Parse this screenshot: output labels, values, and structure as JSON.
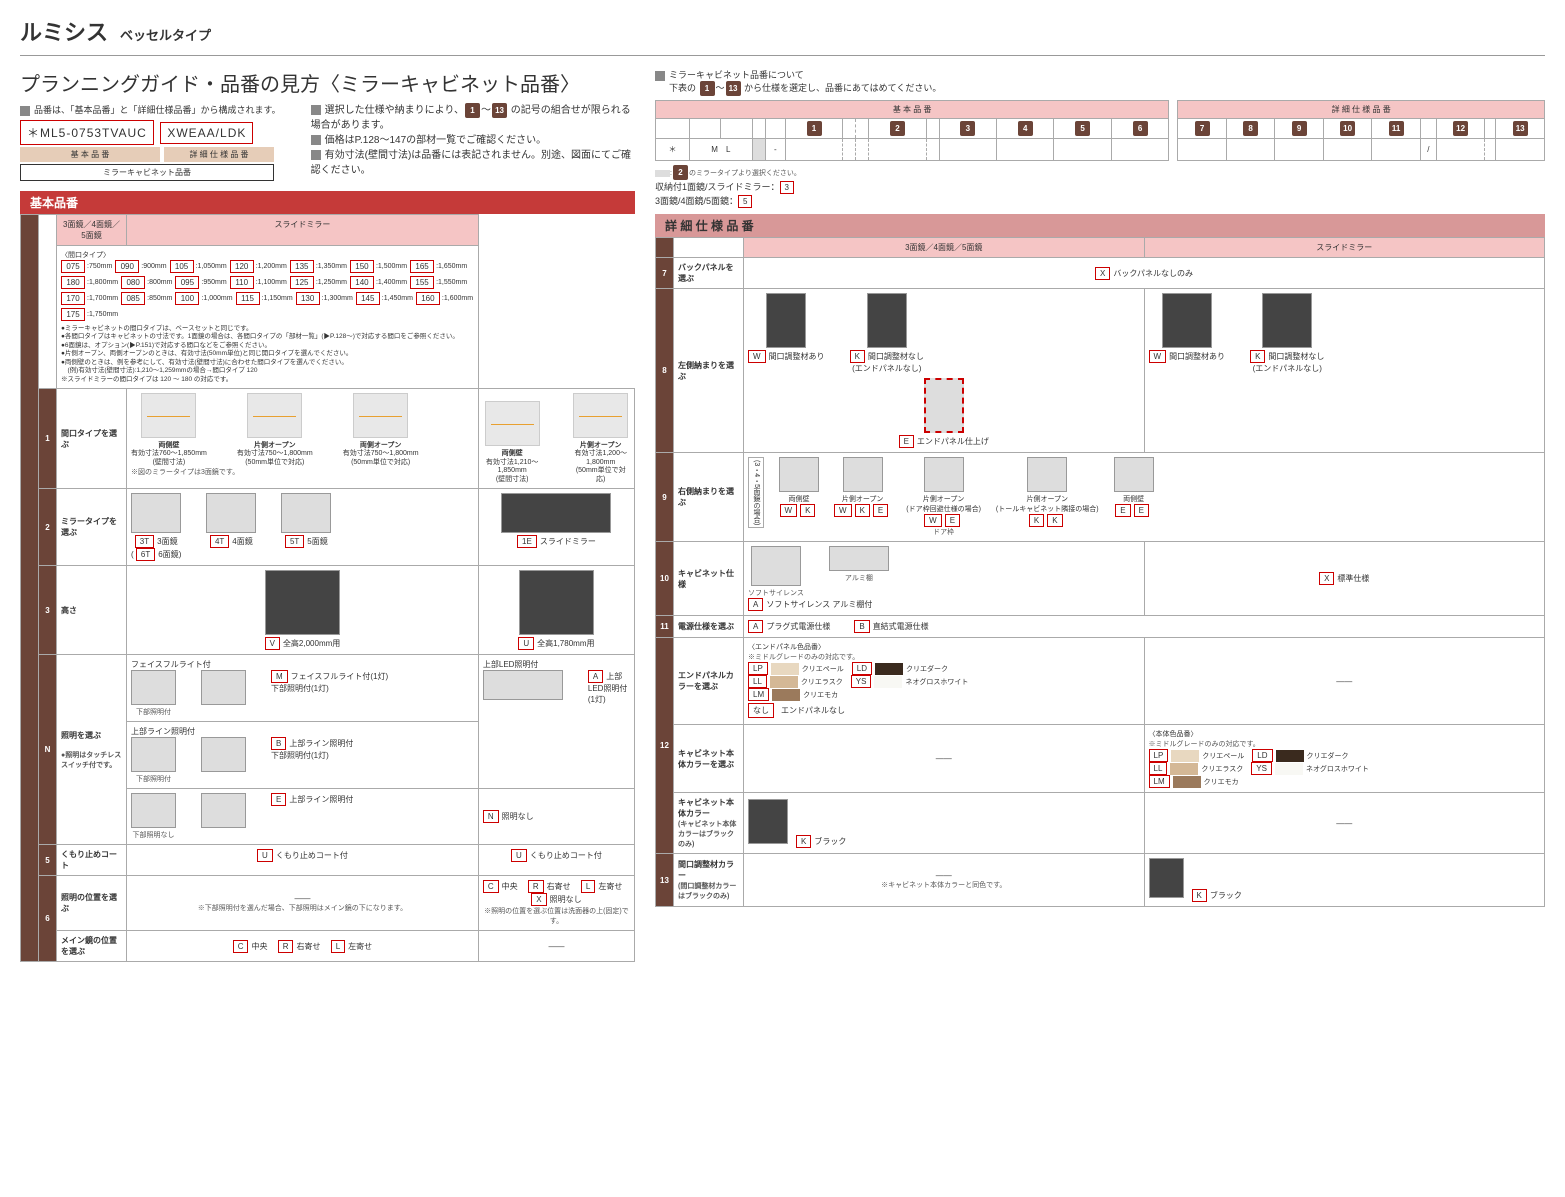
{
  "header": {
    "title": "ルミシス",
    "subtitle": "ベッセルタイプ"
  },
  "plan": {
    "title": "プランニングガイド・品番の見方〈ミラーキャビネット品番〉",
    "intro1": "品番は、「基本品番」と「詳細仕様品番」から構成されます。",
    "code1": "＊ML5-0753TVAUC",
    "code2": "XWEAA/LDK",
    "lbl_base": "基 本 品 番",
    "lbl_detail": "詳 細 仕 様 品 番",
    "lbl_mirror": "ミラーキャビネット品番",
    "bullet1a": "選択した仕様や納まりにより、",
    "bullet1b": " の記号の組合せが限られる場合があります。",
    "bullet2": "価格はP.128～147の部材一覧でご確認ください。",
    "bullet3": "有効寸法(壁間寸法)は品番には表記されません。別途、図面にてご確認ください。"
  },
  "right_intro": {
    "t1": "ミラーキャビネット品番について",
    "t2": "下表の ",
    "t2b": " から仕様を選定し、品番にあてはめてください。",
    "note1": "のミラータイプより選択ください。",
    "note2": "収納付1面鏡/スライドミラー：",
    "note3": "3面鏡/4面鏡/5面鏡："
  },
  "top_codes": {
    "base": "基 本 品 番",
    "detail": "詳 細 仕 様 品 番",
    "ml": "M　L"
  },
  "base": {
    "header": "基本品番",
    "col345": "3面鏡／4面鏡／5面鏡",
    "col_slide": "スライドミラー",
    "r1": {
      "n": "1",
      "label": "間口タイプを選ぶ",
      "sub": "〈間口タイプ〉",
      "sizes": [
        [
          "075",
          ":750mm"
        ],
        [
          "090",
          ":900mm"
        ],
        [
          "105",
          ":1,050mm"
        ],
        [
          "120",
          ":1,200mm"
        ],
        [
          "135",
          ":1,350mm"
        ],
        [
          "150",
          ":1,500mm"
        ],
        [
          "165",
          ":1,650mm"
        ],
        [
          "180",
          ":1,800mm"
        ],
        [
          "080",
          ":800mm"
        ],
        [
          "095",
          ":950mm"
        ],
        [
          "110",
          ":1,100mm"
        ],
        [
          "125",
          ":1,250mm"
        ],
        [
          "140",
          ":1,400mm"
        ],
        [
          "155",
          ":1,550mm"
        ],
        [
          "170",
          ":1,700mm"
        ],
        [
          "085",
          ":850mm"
        ],
        [
          "100",
          ":1,000mm"
        ],
        [
          "115",
          ":1,150mm"
        ],
        [
          "130",
          ":1,300mm"
        ],
        [
          "145",
          ":1,450mm"
        ],
        [
          "160",
          ":1,600mm"
        ],
        [
          "175",
          ":1,750mm"
        ]
      ],
      "notes": "●ミラーキャビネットの間口タイプは、ベースセットと同じです。\n●各間口タイプはキャビネットの寸法です。1面鏡の場合は、各間口タイプの「部材一覧」(▶P.128～)で対応する間口をご参照ください。\n●6面鏡は、オプション(▶P.151)で対応する間口などをご参照ください。\n●片側オープン、両側オープンのときは、有効寸法(50mm単位)と同じ開口タイプを選んでください。\n●両側壁のときは、例を参考にして、有効寸法(壁間寸法)に合わせた間口タイプを選んでください。\n　(例)有効寸法(壁間寸法):1,210～1,259mmの場合→間口タイプ 120\n※スライドミラーの間口タイプは 120 ～ 180 の対応です。",
      "m1": "両側壁",
      "m1s": "有効寸法760～1,850mm\n(壁間寸法)",
      "m2": "片側オープン",
      "m2s": "有効寸法750～1,800mm\n(50mm単位で対応)",
      "m3": "両側オープン",
      "m3s": "有効寸法750～1,800mm\n(50mm単位で対応)",
      "m4": "両側壁",
      "m4s": "有効寸法1,210～1,850mm\n(壁間寸法)",
      "m5": "片側オープン",
      "m5s": "有効寸法1,200～1,800mm\n(50mm単位で対応)",
      "foot": "※図のミラータイプは3面鏡です。"
    },
    "r2": {
      "n": "2",
      "label": "ミラータイプを選ぶ",
      "t3": "3T",
      "t3l": "3面鏡",
      "t6": "6T",
      "t6l": "6面鏡",
      "t4": "4T",
      "t4l": "4面鏡",
      "t5": "5T",
      "t5l": "5面鏡",
      "t1e": "1E",
      "t1el": "スライドミラー"
    },
    "r3": {
      "n": "3",
      "label": "高さ",
      "v": "V",
      "vl": "全高2,000mm用",
      "u": "U",
      "ul": "全高1,780mm用"
    },
    "r4": {
      "n": "N",
      "label": "照明を選ぶ",
      "sub": "●照明はタッチレススイッチ付です。",
      "h1": "フェイスフルライト付",
      "m": "M",
      "ml": "フェイスフルライト付(1灯)\n下部照明付(1灯)",
      "m_under": "下部照明付",
      "h2": "上部ライン照明付",
      "b": "B",
      "bl": "上部ライン照明付\n下部照明付(1灯)",
      "b_under": "下部照明付",
      "e": "E",
      "el": "上部ライン照明付",
      "e_under": "下部照明なし",
      "h3": "上部LED照明付",
      "a": "A",
      "al": "上部LED照明付(1灯)",
      "nl": "照明なし"
    },
    "r5": {
      "n": "5",
      "label": "くもり止めコート",
      "u": "U",
      "ul": "くもり止めコート付"
    },
    "r6": {
      "n": "6",
      "l1": "照明の位置を選ぶ",
      "l2": "メイン鏡の位置を選ぶ",
      "c": "C",
      "cl": "中央",
      "r": "R",
      "rl": "右寄せ",
      "l": "L",
      "ll": "左寄せ",
      "x": "X",
      "xl": "照明なし",
      "n1": "※下部照明付を選んだ場合、下部照明はメイン鏡の下になります。",
      "n2": "※照明の位置を選ぶ位置は洗面器の上(固定)です。"
    }
  },
  "detail": {
    "header": "詳 細 仕 様 品 番",
    "r7": {
      "n": "7",
      "label": "バックパネルを選ぶ",
      "x": "X",
      "xl": "バックパネルなしのみ"
    },
    "r8": {
      "n": "8",
      "label": "左側納まりを選ぶ",
      "w": "W",
      "wl": "間口調整材あり",
      "k": "K",
      "kl": "間口調整材なし\n(エンドパネルなし)",
      "e": "E",
      "el": "エンドパネル仕上げ"
    },
    "r9": {
      "n": "9",
      "label": "右側納まりを選ぶ",
      "side": "(3・4・5面鏡の場合)",
      "c1": "両側壁",
      "c2": "片側オープン",
      "c3": "片側オープン\n(ドア枠回避仕様の場合)",
      "c3s": "ドア枠",
      "c4": "片側オープン\n(トールキャビネット隣接の場合)",
      "c5": "両側壁"
    },
    "r10": {
      "n": "10",
      "label": "キャビネット仕様",
      "a": "A",
      "al": "ソフトサイレンス アルミ棚付",
      "t1": "ソフトサイレンス",
      "t2": "アルミ棚",
      "x": "X",
      "xl": "標準仕様"
    },
    "r11": {
      "n": "11",
      "label": "電源仕様を選ぶ",
      "a": "A",
      "al": "プラグ式電源仕様",
      "b": "B",
      "bl": "直結式電源仕様"
    },
    "r12": {
      "n": "12",
      "l1": "エンドパネルカラーを選ぶ",
      "l2": "キャビネット本体カラーを選ぶ",
      "l3": "キャビネット本体カラー",
      "l3s": "(キャビネット本体カラーはブラックのみ)",
      "h1": "〈エンドパネル色品番〉",
      "h1s": "※ミドルグレードのみの対応です。",
      "h2": "〈本体色品番〉",
      "h2s": "※ミドルグレードのみの対応です。",
      "lp": "LP",
      "lpl": "クリエペール",
      "ll": "LL",
      "lll": "クリエラスク",
      "lm": "LM",
      "lml": "クリエモカ",
      "ld": "LD",
      "ldl": "クリエダーク",
      "ys": "YS",
      "ysl": "ネオグロスホワイト",
      "na": "なし",
      "nal": "エンドパネルなし",
      "c_lp": "#e8d8c0",
      "c_ll": "#d4b896",
      "c_lm": "#9b7a5c",
      "c_ld": "#3a2a1e",
      "c_ys": "#f8f8f4",
      "k": "K",
      "kl": "ブラック"
    },
    "r13": {
      "n": "13",
      "label": "間口調整材カラー",
      "sub": "(間口調整材カラーはブラックのみ)",
      "k": "K",
      "kl": "ブラック",
      "note": "※キャビネット本体カラーと同色です。"
    },
    "dash": "——"
  }
}
